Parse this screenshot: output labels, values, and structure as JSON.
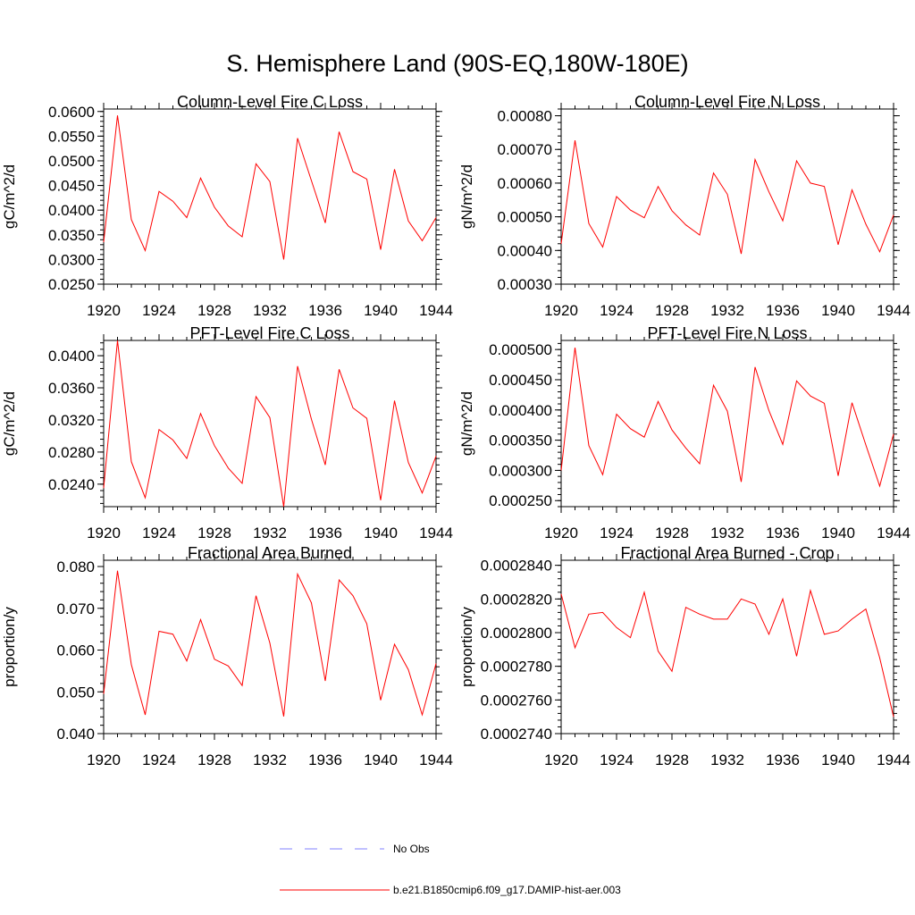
{
  "title": "S. Hemisphere Land (90S-EQ,180W-180E)",
  "legend": [
    {
      "label": "No Obs",
      "color": "#8080ff",
      "style": "dashed"
    },
    {
      "label": "b.e21.B1850cmip6.f09_g17.DAMIP-hist-aer.003",
      "color": "#ff0000",
      "style": "solid"
    }
  ],
  "chart_data": [
    {
      "type": "line",
      "title": "Column-Level Fire C Loss",
      "ylabel": "gC/m^2/d",
      "xlim": [
        1920,
        1944
      ],
      "ylim": [
        0.025,
        0.0605
      ],
      "xticks": [
        "1920",
        "1924",
        "1928",
        "1932",
        "1936",
        "1940",
        "1944"
      ],
      "yticks": [
        "0.0250",
        "0.0300",
        "0.0350",
        "0.0400",
        "0.0450",
        "0.0500",
        "0.0550",
        "0.0600"
      ],
      "x": [
        1920,
        1921,
        1922,
        1923,
        1924,
        1925,
        1926,
        1927,
        1928,
        1929,
        1930,
        1931,
        1932,
        1933,
        1934,
        1935,
        1936,
        1937,
        1938,
        1939,
        1940,
        1941,
        1942,
        1943,
        1944
      ],
      "series": [
        {
          "color": "#ff0000",
          "values": [
            0.0335,
            0.0592,
            0.0381,
            0.0318,
            0.0438,
            0.0418,
            0.0385,
            0.0465,
            0.0406,
            0.0368,
            0.0346,
            0.0494,
            0.0458,
            0.03,
            0.0546,
            0.046,
            0.0374,
            0.0559,
            0.0478,
            0.0463,
            0.032,
            0.0483,
            0.0378,
            0.0338,
            0.0385
          ]
        }
      ]
    },
    {
      "type": "line",
      "title": "Column-Level Fire N Loss",
      "ylabel": "gN/m^2/d",
      "xlim": [
        1920,
        1944
      ],
      "ylim": [
        0.0003,
        0.00082
      ],
      "xticks": [
        "1920",
        "1924",
        "1928",
        "1932",
        "1936",
        "1940",
        "1944"
      ],
      "yticks": [
        "0.00030",
        "0.00040",
        "0.00050",
        "0.00060",
        "0.00070",
        "0.00080"
      ],
      "x": [
        1920,
        1921,
        1922,
        1923,
        1924,
        1925,
        1926,
        1927,
        1928,
        1929,
        1930,
        1931,
        1932,
        1933,
        1934,
        1935,
        1936,
        1937,
        1938,
        1939,
        1940,
        1941,
        1942,
        1943,
        1944
      ],
      "series": [
        {
          "color": "#ff0000",
          "values": [
            0.00042,
            0.000727,
            0.00048,
            0.00041,
            0.00056,
            0.00052,
            0.000497,
            0.00059,
            0.000518,
            0.000476,
            0.000446,
            0.00063,
            0.000567,
            0.00039,
            0.00067,
            0.000574,
            0.000488,
            0.000666,
            0.0006,
            0.00059,
            0.000417,
            0.00058,
            0.000478,
            0.000396,
            0.000505
          ]
        }
      ]
    },
    {
      "type": "line",
      "title": "PFT-Level Fire C Loss",
      "ylabel": "gC/m^2/d",
      "xlim": [
        1920,
        1944
      ],
      "ylim": [
        0.0212,
        0.0419
      ],
      "xticks": [
        "1920",
        "1924",
        "1928",
        "1932",
        "1936",
        "1940",
        "1944"
      ],
      "yticks": [
        "0.0240",
        "0.0280",
        "0.0320",
        "0.0360",
        "0.0400"
      ],
      "x": [
        1920,
        1921,
        1922,
        1923,
        1924,
        1925,
        1926,
        1927,
        1928,
        1929,
        1930,
        1931,
        1932,
        1933,
        1934,
        1935,
        1936,
        1937,
        1938,
        1939,
        1940,
        1941,
        1942,
        1943,
        1944
      ],
      "series": [
        {
          "color": "#ff0000",
          "values": [
            0.0235,
            0.0419,
            0.0268,
            0.0223,
            0.0308,
            0.0295,
            0.0272,
            0.0328,
            0.0288,
            0.026,
            0.0241,
            0.0349,
            0.0323,
            0.0212,
            0.0387,
            0.0321,
            0.0264,
            0.0383,
            0.0335,
            0.0322,
            0.022,
            0.0344,
            0.0267,
            0.0229,
            0.0275
          ]
        }
      ]
    },
    {
      "type": "line",
      "title": "PFT-Level Fire N Loss",
      "ylabel": "gN/m^2/d",
      "xlim": [
        1920,
        1944
      ],
      "ylim": [
        0.00024,
        0.000515
      ],
      "xticks": [
        "1920",
        "1924",
        "1928",
        "1932",
        "1936",
        "1940",
        "1944"
      ],
      "yticks": [
        "0.000250",
        "0.000300",
        "0.000350",
        "0.000400",
        "0.000450",
        "0.000500"
      ],
      "x": [
        1920,
        1921,
        1922,
        1923,
        1924,
        1925,
        1926,
        1927,
        1928,
        1929,
        1930,
        1931,
        1932,
        1933,
        1934,
        1935,
        1936,
        1937,
        1938,
        1939,
        1940,
        1941,
        1942,
        1943,
        1944
      ],
      "series": [
        {
          "color": "#ff0000",
          "values": [
            0.0003,
            0.000503,
            0.000341,
            0.000293,
            0.000393,
            0.000369,
            0.000355,
            0.000414,
            0.000367,
            0.000337,
            0.000311,
            0.000441,
            0.000398,
            0.000281,
            0.000471,
            0.000399,
            0.000343,
            0.000448,
            0.000423,
            0.000411,
            0.000291,
            0.000412,
            0.000342,
            0.000274,
            0.00036
          ]
        }
      ]
    },
    {
      "type": "line",
      "title": "Fractional Area Burned",
      "ylabel": "proportion/y",
      "xlim": [
        1920,
        1944
      ],
      "ylim": [
        0.04,
        0.0815
      ],
      "xticks": [
        "1920",
        "1924",
        "1928",
        "1932",
        "1936",
        "1940",
        "1944"
      ],
      "yticks": [
        "0.040",
        "0.050",
        "0.060",
        "0.070",
        "0.080"
      ],
      "x": [
        1920,
        1921,
        1922,
        1923,
        1924,
        1925,
        1926,
        1927,
        1928,
        1929,
        1930,
        1931,
        1932,
        1933,
        1934,
        1935,
        1936,
        1937,
        1938,
        1939,
        1940,
        1941,
        1942,
        1943,
        1944
      ],
      "series": [
        {
          "color": "#ff0000",
          "values": [
            0.0495,
            0.079,
            0.0565,
            0.0445,
            0.0645,
            0.0638,
            0.0574,
            0.0673,
            0.0578,
            0.0562,
            0.0515,
            0.073,
            0.0617,
            0.0441,
            0.0782,
            0.0713,
            0.0526,
            0.0768,
            0.073,
            0.0663,
            0.048,
            0.0614,
            0.0553,
            0.0445,
            0.0568
          ]
        }
      ]
    },
    {
      "type": "line",
      "title": "Fractional Area Burned - Crop",
      "ylabel": "proportion/y",
      "xlim": [
        1920,
        1944
      ],
      "ylim": [
        0.000274,
        0.0002843
      ],
      "xticks": [
        "1920",
        "1924",
        "1928",
        "1932",
        "1936",
        "1940",
        "1944"
      ],
      "yticks": [
        "0.0002740",
        "0.0002760",
        "0.0002780",
        "0.0002800",
        "0.0002820",
        "0.0002840"
      ],
      "x": [
        1920,
        1921,
        1922,
        1923,
        1924,
        1925,
        1926,
        1927,
        1928,
        1929,
        1930,
        1931,
        1932,
        1933,
        1934,
        1935,
        1936,
        1937,
        1938,
        1939,
        1940,
        1941,
        1942,
        1943,
        1944
      ],
      "series": [
        {
          "color": "#ff0000",
          "values": [
            0.0002823,
            0.0002791,
            0.0002811,
            0.0002812,
            0.0002803,
            0.0002797,
            0.0002824,
            0.0002789,
            0.0002777,
            0.0002815,
            0.0002811,
            0.0002808,
            0.0002808,
            0.000282,
            0.0002817,
            0.0002799,
            0.000282,
            0.0002786,
            0.0002825,
            0.0002799,
            0.0002801,
            0.0002808,
            0.0002814,
            0.0002785,
            0.000275
          ]
        }
      ]
    }
  ]
}
